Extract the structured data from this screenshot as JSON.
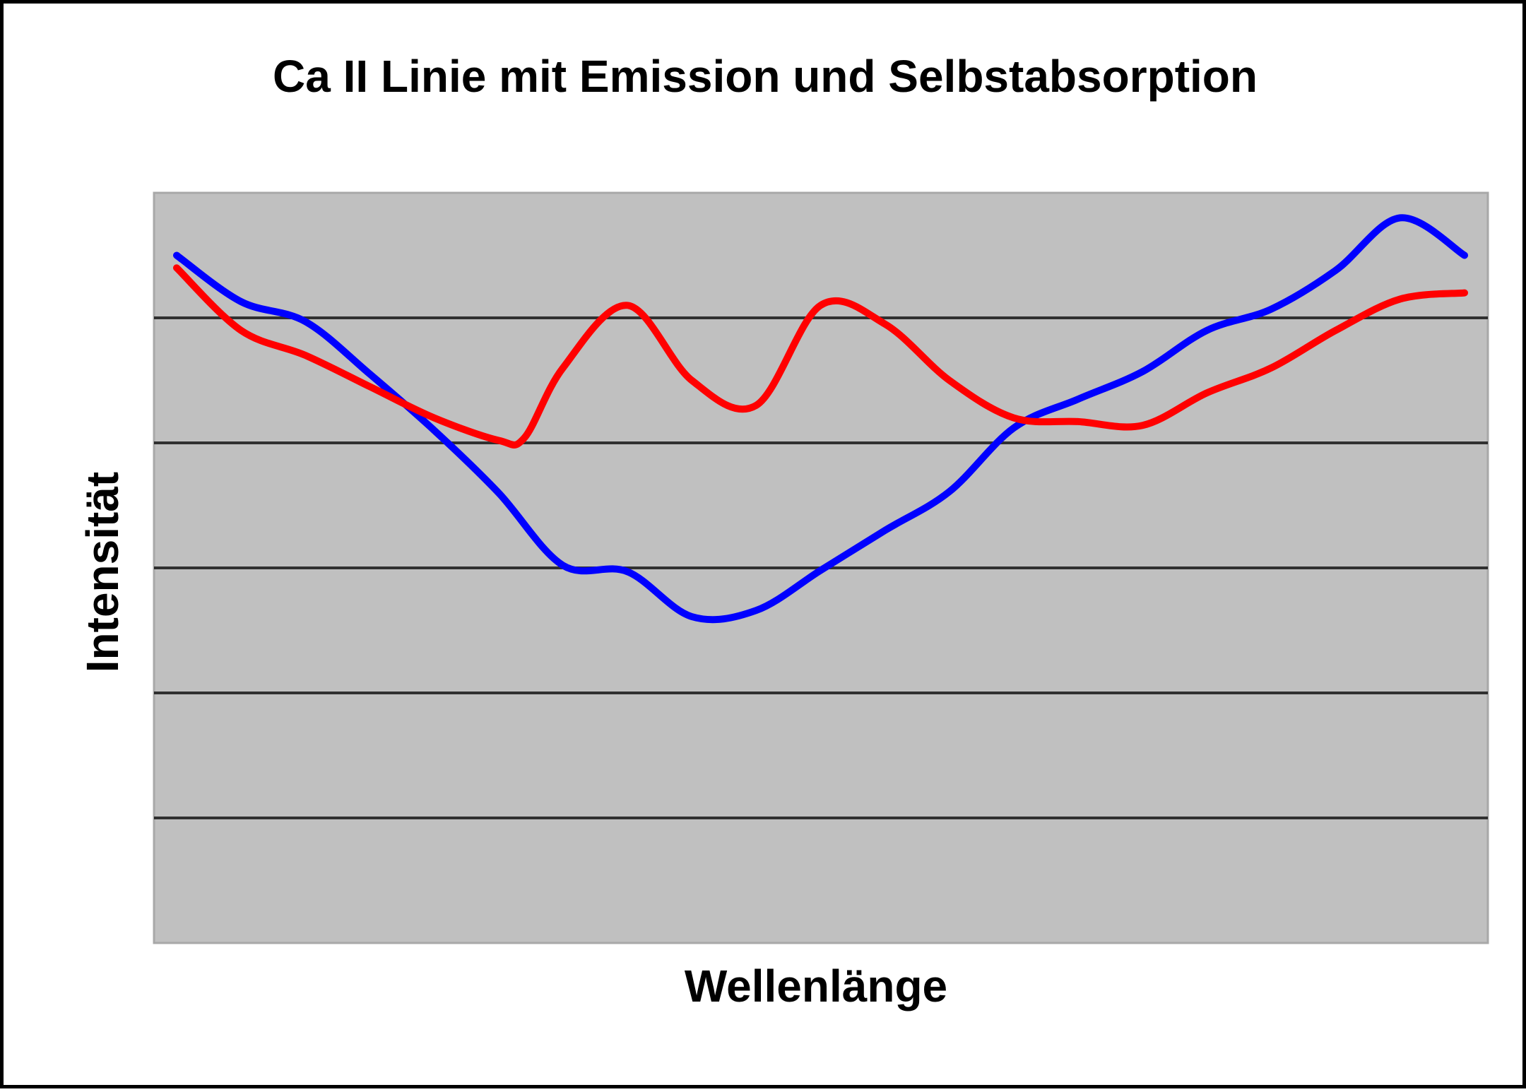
{
  "chart_data": {
    "type": "line",
    "title": "Ca II Linie mit Emission und Selbstabsorption",
    "xlabel": "Wellenlänge",
    "ylabel": "Intensität",
    "xlim": [
      0,
      100
    ],
    "ylim": [
      0,
      6
    ],
    "grid": true,
    "legend": "none",
    "plot_background": "#c0c0c0",
    "gridline_color": "#000000",
    "series": [
      {
        "color": "#0000ff",
        "x": [
          0,
          5,
          10,
          15,
          20,
          25,
          30,
          35,
          40,
          45,
          50,
          55,
          60,
          65,
          70,
          75,
          80,
          85,
          90,
          95,
          100
        ],
        "y": [
          5.5,
          5.13,
          4.97,
          4.55,
          4.1,
          3.6,
          3.02,
          2.97,
          2.61,
          2.66,
          2.98,
          3.3,
          3.61,
          4.12,
          4.35,
          4.57,
          4.9,
          5.07,
          5.38,
          5.8,
          5.5
        ]
      },
      {
        "color": "#ff0000",
        "x": [
          0,
          5,
          10,
          15,
          20,
          25,
          27,
          30,
          35,
          40,
          45,
          50,
          55,
          60,
          65,
          70,
          75,
          80,
          85,
          90,
          95,
          100
        ],
        "y": [
          5.4,
          4.9,
          4.7,
          4.45,
          4.2,
          4.02,
          4.04,
          4.6,
          5.1,
          4.5,
          4.3,
          5.1,
          4.95,
          4.5,
          4.2,
          4.17,
          4.14,
          4.4,
          4.6,
          4.9,
          5.15,
          5.2
        ]
      }
    ]
  }
}
